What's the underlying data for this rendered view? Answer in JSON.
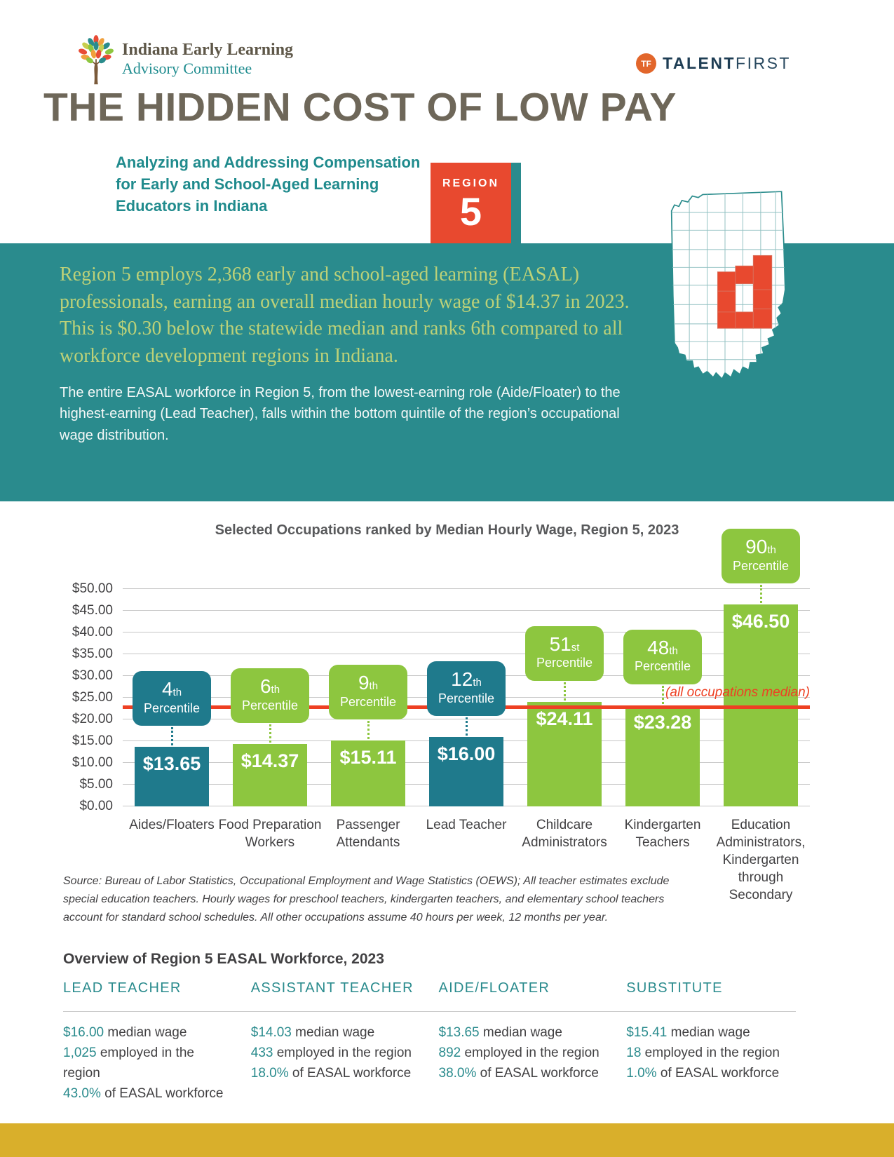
{
  "header": {
    "org_logo": {
      "line1": "Indiana Early Learning",
      "line2": "Advisory Committee"
    },
    "partner_logo": {
      "monogram": "TF",
      "bold": "TALENT",
      "light": "FIRST"
    }
  },
  "title": "THE HIDDEN COST OF LOW PAY",
  "subtitle": {
    "lines": [
      "Analyzing and Addressing Compensation",
      "for Early and School-Aged Learning",
      "Educators in Indiana"
    ]
  },
  "region_badge": {
    "label": "REGION",
    "number": "5"
  },
  "intro": {
    "highlight_paragraph": "Region 5 employs 2,368 early and school-aged learning (EASAL) professionals, earning an overall median hourly wage of $14.37 in 2023. This is $0.30 below the statewide median and ranks 6th compared to all workforce development regions in Indiana.",
    "body_paragraph": "The entire EASAL workforce in Region 5, from the lowest-earning role (Aide/Floater) to the highest-earning (Lead Teacher), falls within the bottom quintile of the region’s occupational wage distribution."
  },
  "chart_data": {
    "type": "bar",
    "title": "Selected Occupations ranked by Median Hourly Wage, Region 5, 2023",
    "xlabel": "",
    "ylabel": "",
    "ylim": [
      0,
      50
    ],
    "y_tick_step": 5,
    "y_ticks": [
      "$0.00",
      "$5.00",
      "$10.00",
      "$15.00",
      "$20.00",
      "$25.00",
      "$30.00",
      "$35.00",
      "$40.00",
      "$45.00",
      "$50.00"
    ],
    "grid": true,
    "legend": "none",
    "median_line": {
      "value": 22.75,
      "label": "(all occupations median)"
    },
    "bars": [
      {
        "category": "Aides/Floaters",
        "value": 13.65,
        "value_label": "$13.65",
        "percentile_num": "4",
        "percentile_suffix": "th",
        "percentile_word": "Percentile",
        "color": "teal"
      },
      {
        "category": "Food Preparation Workers",
        "value": 14.37,
        "value_label": "$14.37",
        "percentile_num": "6",
        "percentile_suffix": "th",
        "percentile_word": "Percentile",
        "color": "green"
      },
      {
        "category": "Passenger Attendants",
        "value": 15.11,
        "value_label": "$15.11",
        "percentile_num": "9",
        "percentile_suffix": "th",
        "percentile_word": "Percentile",
        "color": "green"
      },
      {
        "category": "Lead Teacher",
        "value": 16.0,
        "value_label": "$16.00",
        "percentile_num": "12",
        "percentile_suffix": "th",
        "percentile_word": "Percentile",
        "color": "teal"
      },
      {
        "category": "Childcare Administrators",
        "value": 24.11,
        "value_label": "$24.11",
        "percentile_num": "51",
        "percentile_suffix": "st",
        "percentile_word": "Percentile",
        "color": "green"
      },
      {
        "category": "Kindergarten Teachers",
        "value": 23.28,
        "value_label": "$23.28",
        "percentile_num": "48",
        "percentile_suffix": "th",
        "percentile_word": "Percentile",
        "color": "green"
      },
      {
        "category": "Education Administrators, Kindergarten through Secondary",
        "value": 46.5,
        "value_label": "$46.50",
        "percentile_num": "90",
        "percentile_suffix": "th",
        "percentile_word": "Percentile",
        "color": "green"
      }
    ],
    "colors": {
      "teal": "#1F7A8C",
      "green": "#8DC63F",
      "median": "#EE4023"
    }
  },
  "source_note": "Source: Bureau of Labor Statistics, Occupational Employment and Wage Statistics (OEWS); All teacher estimates exclude special education teachers. Hourly wages for preschool teachers, kindergarten teachers, and elementary school teachers account for standard school schedules. All other occupations assume 40 hours per week, 12 months per year.",
  "overview": {
    "heading": "Overview of Region 5 EASAL Workforce, 2023",
    "columns": [
      {
        "role": "LEAD TEACHER",
        "stats": [
          {
            "value": "$16.00",
            "text": "median wage"
          },
          {
            "value": "1,025",
            "text": "employed in the region"
          },
          {
            "value": "43.0%",
            "text": "of EASAL workforce"
          }
        ]
      },
      {
        "role": "ASSISTANT TEACHER",
        "stats": [
          {
            "value": "$14.03",
            "text": "median wage"
          },
          {
            "value": "433",
            "text": "employed in the region"
          },
          {
            "value": "18.0%",
            "text": "of EASAL workforce"
          }
        ]
      },
      {
        "role": "AIDE/FLOATER",
        "stats": [
          {
            "value": "$13.65",
            "text": "median wage"
          },
          {
            "value": "892",
            "text": "employed in the region"
          },
          {
            "value": "38.0%",
            "text": "of EASAL workforce"
          }
        ]
      },
      {
        "role": "SUBSTITUTE",
        "stats": [
          {
            "value": "$15.41",
            "text": "median wage"
          },
          {
            "value": "18",
            "text": "employed in the region"
          },
          {
            "value": "1.0%",
            "text": "of EASAL workforce"
          }
        ]
      }
    ]
  }
}
